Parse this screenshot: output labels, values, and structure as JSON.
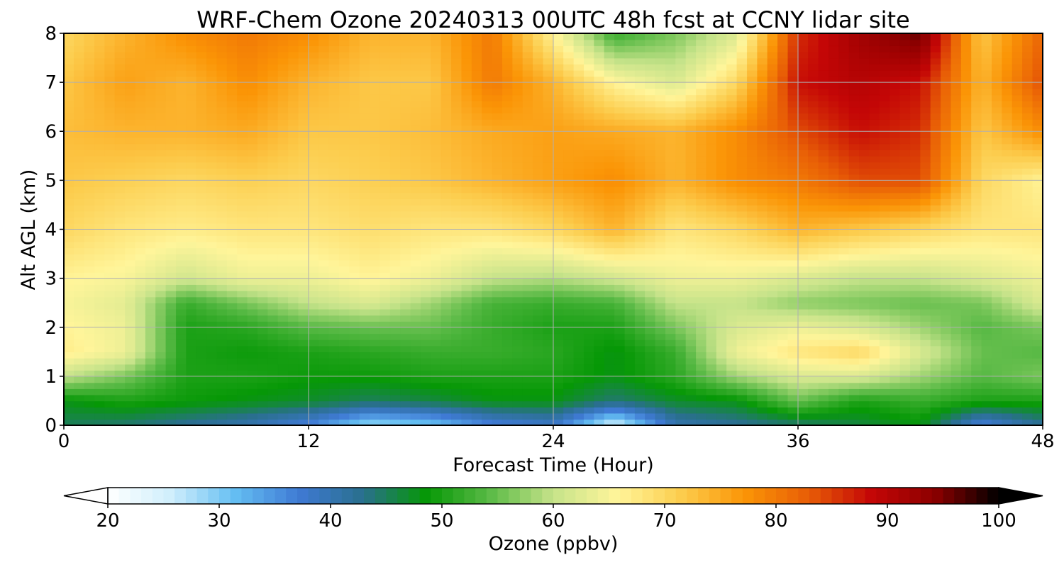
{
  "chart_data": {
    "type": "heatmap",
    "title": "WRF-Chem Ozone  20240313 00UTC 48h fcst at CCNY lidar site",
    "xlabel": "Forecast Time (Hour)",
    "ylabel": "Alt AGL (km)",
    "xlim": [
      0,
      48
    ],
    "ylim": [
      0,
      8
    ],
    "x_ticks": [
      0,
      12,
      24,
      36,
      48
    ],
    "y_ticks": [
      0,
      1,
      2,
      3,
      4,
      5,
      6,
      7,
      8
    ],
    "grid": true,
    "x": [
      0,
      3,
      6,
      9,
      12,
      15,
      18,
      21,
      24,
      27,
      30,
      33,
      36,
      39,
      42,
      45,
      48
    ],
    "y": [
      0,
      0.5,
      1,
      1.5,
      2,
      2.5,
      3,
      4,
      5,
      6,
      7,
      8
    ],
    "z": [
      [
        45,
        44,
        42,
        40,
        36,
        28,
        30,
        36,
        38,
        24,
        40,
        42,
        44,
        46,
        48,
        36,
        42
      ],
      [
        48,
        50,
        49,
        48,
        47,
        45,
        46,
        48,
        48,
        44,
        47,
        48,
        55,
        50,
        52,
        50,
        50
      ],
      [
        60,
        56,
        50,
        50,
        49,
        49,
        50,
        50,
        50,
        48,
        51,
        58,
        62,
        62,
        58,
        54,
        56
      ],
      [
        67,
        64,
        50,
        49,
        50,
        51,
        52,
        52,
        51,
        48,
        52,
        64,
        68,
        70,
        62,
        55,
        54
      ],
      [
        66,
        64,
        50,
        51,
        54,
        55,
        55,
        52,
        50,
        50,
        56,
        62,
        64,
        62,
        58,
        54,
        56
      ],
      [
        65,
        63,
        52,
        56,
        60,
        62,
        58,
        53,
        52,
        53,
        60,
        60,
        57,
        56,
        55,
        56,
        62
      ],
      [
        66,
        65,
        61,
        64,
        64,
        66,
        64,
        60,
        59,
        61,
        64,
        64,
        62,
        60,
        60,
        62,
        64
      ],
      [
        70,
        68,
        67,
        68,
        68,
        69,
        68,
        68,
        70,
        74,
        68,
        70,
        74,
        72,
        70,
        68,
        68
      ],
      [
        72,
        71,
        70,
        71,
        70,
        71,
        72,
        74,
        76,
        78,
        74,
        78,
        80,
        84,
        84,
        70,
        66
      ],
      [
        73,
        74,
        74,
        75,
        72,
        72,
        73,
        75,
        76,
        75,
        74,
        78,
        84,
        88,
        86,
        72,
        78
      ],
      [
        72,
        76,
        74,
        78,
        74,
        72,
        72,
        80,
        74,
        66,
        62,
        70,
        88,
        90,
        88,
        74,
        84
      ],
      [
        70,
        74,
        78,
        80,
        78,
        74,
        74,
        80,
        66,
        52,
        56,
        62,
        86,
        92,
        96,
        72,
        82
      ]
    ],
    "colorbar": {
      "label": "Ozone  (ppbv)",
      "min": 20,
      "max": 100,
      "ticks": [
        20,
        30,
        40,
        50,
        60,
        70,
        80,
        90,
        100
      ],
      "extend": "both",
      "colors": [
        "#ffffff",
        "#cfeefc",
        "#64bef2",
        "#3f7ad4",
        "#2a6f8e",
        "#069806",
        "#5aba46",
        "#c6e38a",
        "#fff59a",
        "#fccd4e",
        "#fb9506",
        "#e85e06",
        "#c40606",
        "#8b0000",
        "#000000"
      ]
    }
  }
}
